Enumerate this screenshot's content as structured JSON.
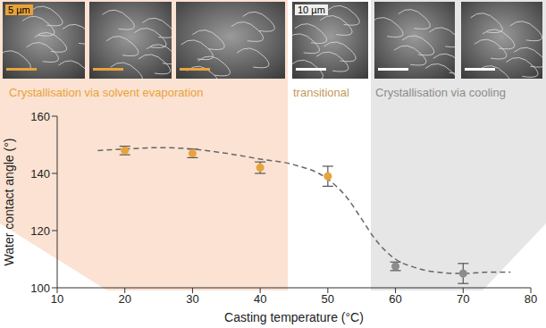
{
  "chart_data": {
    "type": "scatter",
    "x_label": "Casting temperature (°C)",
    "y_label": "Water contact angle (°)",
    "x": [
      20,
      30,
      40,
      50,
      60,
      70
    ],
    "values": [
      148,
      147,
      142,
      139,
      107.5,
      105
    ],
    "errors": [
      1.5,
      1.5,
      2,
      3.5,
      1.5,
      3.5
    ],
    "colors": [
      "#e8a33a",
      "#e8a33a",
      "#e8a33a",
      "#e8a33a",
      "#8c8c8c",
      "#8c8c8c"
    ],
    "marker": "circle",
    "fit": {
      "type": "line",
      "line_style": "dashed",
      "color": "#666666",
      "x": [
        16,
        20,
        25,
        30,
        35,
        40,
        45,
        50,
        53,
        55,
        57,
        60,
        63,
        66,
        70,
        74,
        77
      ],
      "values": [
        148,
        148.5,
        149,
        148.5,
        147,
        145,
        143,
        138,
        131,
        124,
        117,
        110,
        107,
        105.5,
        105,
        105.5,
        105.5
      ]
    },
    "xlim": [
      10,
      80
    ],
    "xticks": [
      10,
      20,
      30,
      40,
      50,
      60,
      70,
      80
    ],
    "ylim": [
      100,
      160
    ],
    "yticks": [
      100,
      120,
      140,
      160
    ],
    "grid": false,
    "regions": [
      {
        "label": "Crystallisation via solvent evaporation",
        "color": "#e8a33a"
      },
      {
        "label": "transitional",
        "color": "#c49a5a"
      },
      {
        "label": "Crystallisation via cooling",
        "color": "#8c8c8c"
      }
    ],
    "scale_bars": [
      "5 µm",
      "10 µm"
    ]
  }
}
